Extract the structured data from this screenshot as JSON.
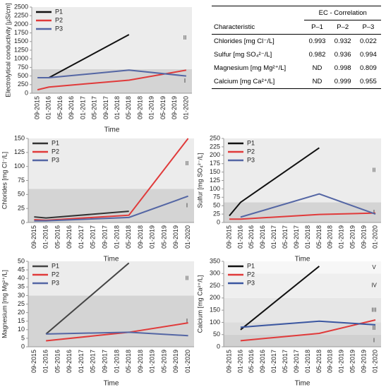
{
  "chart_data": [
    {
      "type": "line",
      "ylabel": "Electrolytical conductivity [µS/cm]",
      "xlabel": "Time",
      "categories": [
        "09-2015",
        "01-2016",
        "05-2016",
        "09-2016",
        "01-2017",
        "05-2017",
        "09-2017",
        "01-2018",
        "05-2018",
        "09-2018",
        "01-2019",
        "05-2019",
        "09-2019",
        "01-2020"
      ],
      "ylim": [
        0,
        2500
      ],
      "yticks": [
        0,
        250,
        500,
        750,
        1000,
        1250,
        1500,
        1750,
        2000,
        2250,
        2500
      ],
      "legend": "upper left",
      "zones": [
        {
          "label": "I",
          "from": 0,
          "to": 700,
          "color": "#d4d4d4"
        },
        {
          "label": "II",
          "from": 700,
          "to": 2500,
          "color": "#ececec"
        }
      ],
      "series": [
        {
          "name": "P1",
          "color": "#111111",
          "x": [
            "01-2016",
            "05-2018"
          ],
          "values": [
            450,
            1700
          ]
        },
        {
          "name": "P2",
          "color": "#e03a3a",
          "x": [
            "09-2015",
            "01-2016",
            "05-2018",
            "01-2020"
          ],
          "values": [
            100,
            180,
            380,
            670
          ]
        },
        {
          "name": "P3",
          "color": "#5466a4",
          "x": [
            "09-2015",
            "01-2016",
            "05-2018",
            "01-2020"
          ],
          "values": [
            450,
            450,
            670,
            500
          ]
        }
      ]
    },
    {
      "type": "line",
      "ylabel": "Chlorides [mg Cl⁻/L]",
      "xlabel": "Time",
      "categories": [
        "09-2015",
        "01-2016",
        "05-2016",
        "09-2016",
        "01-2017",
        "05-2017",
        "09-2017",
        "01-2018",
        "05-2018",
        "09-2018",
        "01-2019",
        "05-2019",
        "09-2019",
        "01-2020"
      ],
      "ylim": [
        0,
        150
      ],
      "yticks": [
        0,
        25,
        50,
        75,
        100,
        125,
        150
      ],
      "legend": "upper left",
      "zones": [
        {
          "label": "I",
          "from": 0,
          "to": 60,
          "color": "#d4d4d4"
        },
        {
          "label": "II",
          "from": 60,
          "to": 150,
          "color": "#ececec"
        }
      ],
      "series": [
        {
          "name": "P1",
          "color": "#333333",
          "x": [
            "09-2015",
            "01-2016",
            "05-2018"
          ],
          "values": [
            10,
            8,
            20
          ]
        },
        {
          "name": "P2",
          "color": "#e03a3a",
          "x": [
            "09-2015",
            "01-2016",
            "05-2018",
            "01-2020"
          ],
          "values": [
            5,
            4,
            13,
            150
          ]
        },
        {
          "name": "P3",
          "color": "#5466a4",
          "x": [
            "09-2015",
            "01-2016",
            "05-2018",
            "01-2020"
          ],
          "values": [
            3,
            3,
            9,
            47
          ]
        }
      ]
    },
    {
      "type": "line",
      "ylabel": "Sulfur [mg SO₄²⁻/L]",
      "xlabel": "Time",
      "categories": [
        "09-2015",
        "01-2016",
        "05-2016",
        "09-2016",
        "01-2017",
        "05-2017",
        "09-2017",
        "01-2018",
        "05-2018",
        "09-2018",
        "01-2019",
        "05-2019",
        "09-2019",
        "01-2020"
      ],
      "ylim": [
        0,
        250
      ],
      "yticks": [
        0,
        25,
        50,
        75,
        100,
        125,
        150,
        175,
        200,
        225,
        250
      ],
      "legend": "upper left",
      "zones": [
        {
          "label": "I",
          "from": 0,
          "to": 60,
          "color": "#d4d4d4"
        },
        {
          "label": "II",
          "from": 60,
          "to": 250,
          "color": "#ececec"
        }
      ],
      "series": [
        {
          "name": "P1",
          "color": "#111111",
          "x": [
            "09-2015",
            "01-2016",
            "05-2018"
          ],
          "values": [
            20,
            60,
            222
          ]
        },
        {
          "name": "P2",
          "color": "#e03a3a",
          "x": [
            "09-2015",
            "01-2016",
            "05-2018",
            "01-2020"
          ],
          "values": [
            10,
            10,
            24,
            28
          ]
        },
        {
          "name": "P3",
          "color": "#5466a4",
          "x": [
            "01-2016",
            "05-2018",
            "01-2020"
          ],
          "values": [
            16,
            85,
            25
          ]
        }
      ]
    },
    {
      "type": "line",
      "ylabel": "Magnesium [mg Mg²⁺/L]",
      "xlabel": "Time",
      "categories": [
        "09-2015",
        "01-2016",
        "05-2016",
        "09-2016",
        "01-2017",
        "05-2017",
        "09-2017",
        "01-2018",
        "05-2018",
        "09-2018",
        "01-2019",
        "05-2019",
        "09-2019",
        "01-2020"
      ],
      "ylim": [
        0,
        50
      ],
      "yticks": [
        0,
        5,
        10,
        15,
        20,
        25,
        30,
        35,
        40,
        45,
        50
      ],
      "legend": "upper left",
      "zones": [
        {
          "label": "I",
          "from": 0,
          "to": 30,
          "color": "#d4d4d4"
        },
        {
          "label": "II",
          "from": 30,
          "to": 50,
          "color": "#ececec"
        }
      ],
      "series": [
        {
          "name": "P1",
          "color": "#444444",
          "x": [
            "01-2016",
            "05-2018"
          ],
          "values": [
            7.5,
            49
          ]
        },
        {
          "name": "P2",
          "color": "#e03a3a",
          "x": [
            "01-2016",
            "05-2018",
            "01-2020"
          ],
          "values": [
            3.5,
            8.5,
            14
          ]
        },
        {
          "name": "P3",
          "color": "#5466a4",
          "x": [
            "01-2016",
            "05-2018",
            "01-2020"
          ],
          "values": [
            7.5,
            8.5,
            6.5
          ]
        }
      ]
    },
    {
      "type": "line",
      "ylabel": "Calcium [mg Ca²⁺/L]",
      "xlabel": "Time",
      "categories": [
        "09-2015",
        "01-2016",
        "05-2016",
        "09-2016",
        "01-2017",
        "05-2017",
        "09-2017",
        "01-2018",
        "05-2018",
        "09-2018",
        "01-2019",
        "05-2019",
        "09-2019",
        "01-2020"
      ],
      "ylim": [
        0,
        350
      ],
      "yticks": [
        0,
        50,
        100,
        150,
        200,
        250,
        300,
        350
      ],
      "legend": "upper left",
      "zones": [
        {
          "label": "I",
          "from": 0,
          "to": 50,
          "color": "#d0d0d0"
        },
        {
          "label": "II",
          "from": 50,
          "to": 100,
          "color": "#dcdcdc"
        },
        {
          "label": "III",
          "from": 100,
          "to": 200,
          "color": "#e6e6e6"
        },
        {
          "label": "IV",
          "from": 200,
          "to": 300,
          "color": "#efefef"
        },
        {
          "label": "V",
          "from": 300,
          "to": 350,
          "color": "#f7f7f7"
        }
      ],
      "series": [
        {
          "name": "P1",
          "color": "#111111",
          "x": [
            "01-2016",
            "05-2018"
          ],
          "values": [
            70,
            330
          ]
        },
        {
          "name": "P2",
          "color": "#e03a3a",
          "x": [
            "01-2016",
            "05-2018",
            "01-2020"
          ],
          "values": [
            25,
            55,
            110
          ]
        },
        {
          "name": "P3",
          "color": "#3a56a0",
          "x": [
            "01-2016",
            "05-2018",
            "01-2020"
          ],
          "values": [
            80,
            105,
            90
          ]
        }
      ]
    }
  ],
  "table": {
    "title": "EC - Correlation",
    "header": [
      "Characteristic",
      "P–1",
      "P–2",
      "P–3"
    ],
    "rows": [
      [
        "Chlorides [mg Cl⁻/L]",
        "0.993",
        "0.932",
        "0.022"
      ],
      [
        "Sulfur [mg  SO₄²⁻/L]",
        "0.982",
        "0.936",
        "0.994"
      ],
      [
        "Magnesium [mg Mg²⁺/L]",
        "ND",
        "0.998",
        "0.809"
      ],
      [
        "Calcium [mg Ca²⁺/L]",
        "ND",
        "0.999",
        "0.955"
      ]
    ]
  }
}
